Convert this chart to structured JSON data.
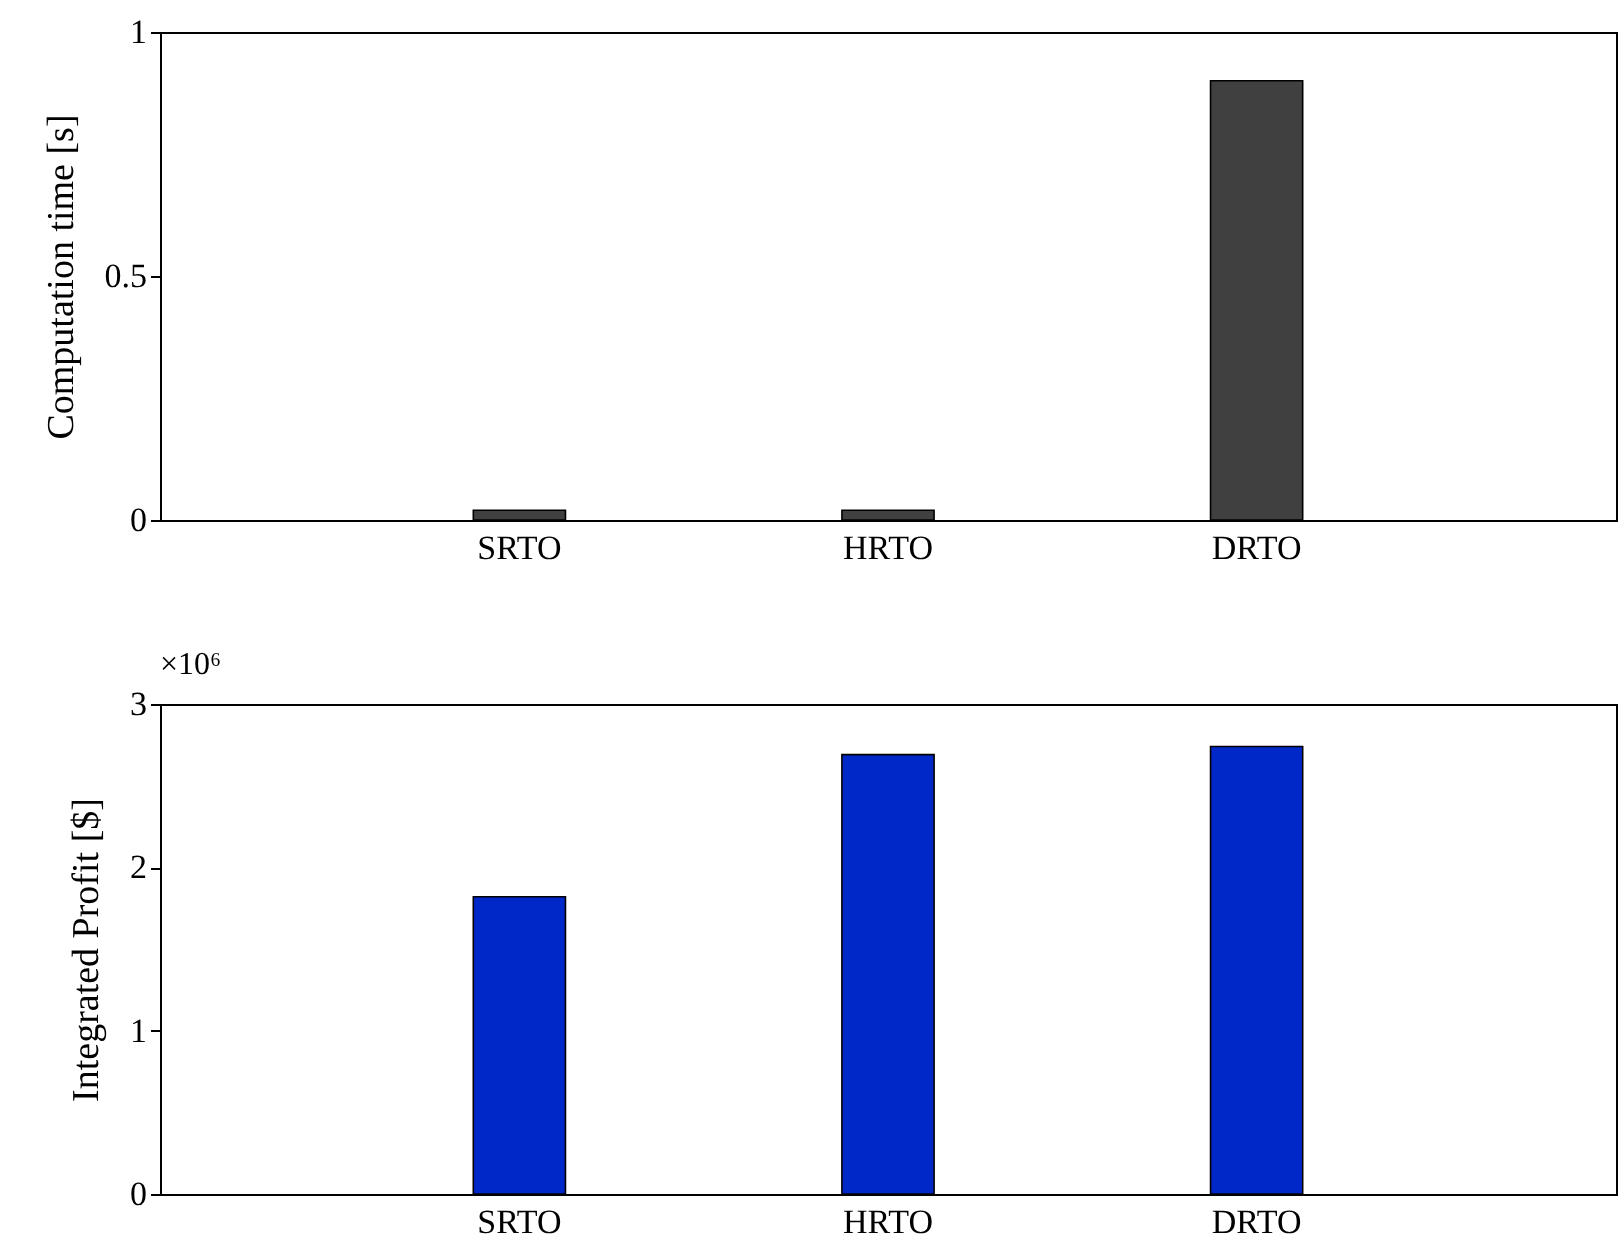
{
  "chart_data": [
    {
      "type": "bar",
      "categories": [
        "SRTO",
        "HRTO",
        "DRTO"
      ],
      "values": [
        0.02,
        0.02,
        0.9
      ],
      "color": "#404040",
      "ylabel": "Computation time [s]",
      "ylim": [
        0,
        1
      ],
      "yticks": [
        0,
        0.5,
        1
      ]
    },
    {
      "type": "bar",
      "categories": [
        "SRTO",
        "HRTO",
        "DRTO"
      ],
      "values": [
        1.82,
        2.69,
        2.74
      ],
      "color": "#0028c8",
      "ylabel": "Integrated Profit [$]",
      "ylim": [
        0,
        3
      ],
      "yticks": [
        0,
        1,
        2,
        3
      ],
      "annotations": [
        "×10⁶"
      ]
    }
  ]
}
